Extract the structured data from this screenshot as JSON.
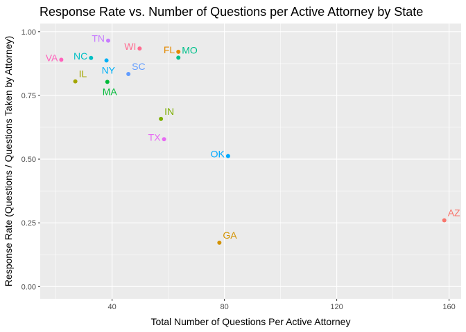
{
  "chart_data": {
    "type": "scatter",
    "title": "Response Rate vs. Number of Questions per Active Attorney by State",
    "xlabel": "Total Number of Questions Per Active Attorney",
    "ylabel": "Response Rate (Questions / Questions Taken by Attorney)",
    "xlim": [
      14.4,
      164.3
    ],
    "ylim": [
      -0.048,
      1.032
    ],
    "xticks": [
      40,
      80,
      120,
      160
    ],
    "xtick_labels": [
      "40",
      "80",
      "120",
      "160"
    ],
    "yticks": [
      0,
      0.25,
      0.5,
      0.75,
      1.0
    ],
    "ytick_labels": [
      "0.00",
      "0.25",
      "0.50",
      "0.75",
      "1.00"
    ],
    "grid": true,
    "legend": "none",
    "panel_background": "#ebebeb",
    "points": [
      {
        "label": "AZ",
        "x": 158.3,
        "y": 0.26,
        "color": "#F8766D",
        "label_pos": "right"
      },
      {
        "label": "VA",
        "x": 21.9,
        "y": 0.89,
        "color": "#FF62BC",
        "label_pos": "left"
      },
      {
        "label": "IL",
        "x": 26.9,
        "y": 0.805,
        "color": "#A3A500",
        "label_pos": "right"
      },
      {
        "label": "NC",
        "x": 32.5,
        "y": 0.897,
        "color": "#00BFC4",
        "label_pos": "left"
      },
      {
        "label": "NY",
        "x": 38.0,
        "y": 0.887,
        "color": "#00B0F6",
        "label_pos": "below"
      },
      {
        "label": "TN",
        "x": 38.6,
        "y": 0.965,
        "color": "#C77CFF",
        "label_pos": "left"
      },
      {
        "label": "MA",
        "x": 38.3,
        "y": 0.803,
        "color": "#00BA38",
        "label_pos": "below"
      },
      {
        "label": "SC",
        "x": 45.8,
        "y": 0.834,
        "color": "#619CFF",
        "label_pos": "right"
      },
      {
        "label": "WI",
        "x": 49.8,
        "y": 0.934,
        "color": "#FF6C91",
        "label_pos": "left"
      },
      {
        "label": "IN",
        "x": 57.4,
        "y": 0.658,
        "color": "#7CAE00",
        "label_pos": "right"
      },
      {
        "label": "TX",
        "x": 58.5,
        "y": 0.578,
        "color": "#E76BF3",
        "label_pos": "left"
      },
      {
        "label": "FL",
        "x": 63.6,
        "y": 0.921,
        "color": "#E38900",
        "label_pos": "left"
      },
      {
        "label": "MO",
        "x": 63.6,
        "y": 0.898,
        "color": "#00C08B",
        "label_pos": "right"
      },
      {
        "label": "GA",
        "x": 78.2,
        "y": 0.172,
        "color": "#D39200",
        "label_pos": "right"
      },
      {
        "label": "OK",
        "x": 81.3,
        "y": 0.512,
        "color": "#00A9FF",
        "label_pos": "left"
      }
    ]
  }
}
